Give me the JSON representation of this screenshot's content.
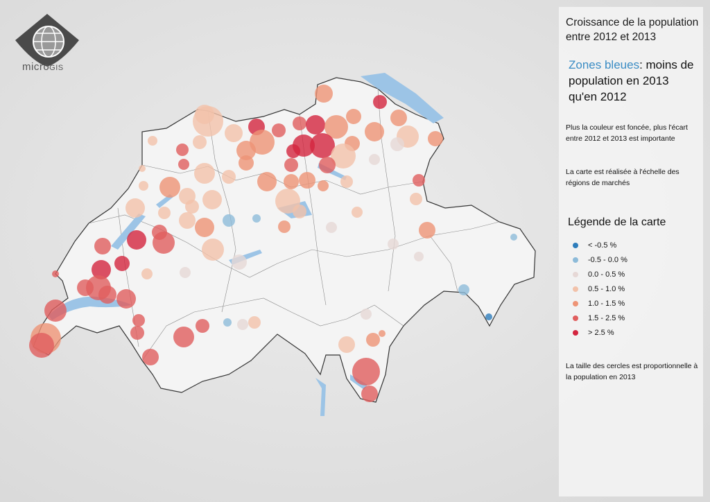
{
  "logo": {
    "name_main": "micro",
    "name_suffix": "GIS"
  },
  "panel": {
    "title": "Croissance de la population entre 2012 et 2013",
    "subtitle_highlight": "Zones bleues",
    "subtitle_rest": ": moins de population en 2013 qu'en 2012",
    "note_color": "Plus la couleur est foncée, plus l'écart entre 2012 et 2013 est importante",
    "note_scale": "La carte est réalisée à l'échelle des régions de marchés",
    "legend_title": "Légende de la carte",
    "legend": [
      {
        "label": "< -0.5 %",
        "color": "#2e7dbb"
      },
      {
        "label": "-0.5 - 0.0 %",
        "color": "#8dbbd9"
      },
      {
        "label": "0.0 - 0.5 %",
        "color": "#e6d8d6"
      },
      {
        "label": "0.5 - 1.0 %",
        "color": "#f2c2aa"
      },
      {
        "label": "1.0 - 1.5 %",
        "color": "#ee9476"
      },
      {
        "label": "1.5 - 2.5 %",
        "color": "#e05e5e"
      },
      {
        "label": "> 2.5 %",
        "color": "#d3253f"
      }
    ],
    "note_size": "La taille des cercles est proportionnelle à la population en 2013"
  },
  "colors": {
    "lake": "#9cc4e6",
    "land": "#f4f4f4",
    "border": "#444444"
  }
}
